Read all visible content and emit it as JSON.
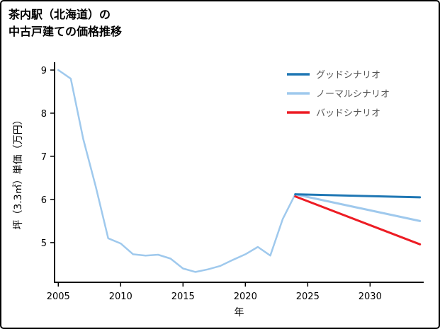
{
  "title": {
    "line1": "茶内駅（北海道）の",
    "line2": "中古戸建ての価格推移"
  },
  "chart_data": {
    "type": "line",
    "xlabel": "年",
    "ylabel": "坪（3.3㎡）単価（万円）",
    "x_ticks": [
      2005,
      2010,
      2015,
      2020,
      2025,
      2030
    ],
    "y_ticks": [
      5,
      6,
      7,
      8,
      9
    ],
    "xlim": [
      2004.7,
      2034.3
    ],
    "ylim": [
      4.08,
      9.18
    ],
    "grid": false,
    "legend_position": "top-right",
    "series": [
      {
        "id": "history",
        "color": "#9fc9ed",
        "width": 2.5,
        "x": [
          2005,
          2006,
          2007,
          2008,
          2009,
          2010,
          2011,
          2012,
          2013,
          2014,
          2015,
          2016,
          2017,
          2018,
          2019,
          2020,
          2021,
          2022,
          2023,
          2024
        ],
        "values": [
          9.0,
          8.8,
          7.4,
          6.3,
          5.1,
          4.98,
          4.73,
          4.7,
          4.72,
          4.63,
          4.4,
          4.32,
          4.38,
          4.46,
          4.6,
          4.73,
          4.9,
          4.7,
          5.55,
          6.12
        ]
      },
      {
        "id": "normal",
        "label": "ノーマルシナリオ",
        "color": "#9fc9ed",
        "width": 3,
        "x": [
          2024,
          2034
        ],
        "values": [
          6.12,
          5.5
        ]
      },
      {
        "id": "bad",
        "label": "バッドシナリオ",
        "color": "#ed1c24",
        "width": 3,
        "x": [
          2024,
          2034
        ],
        "values": [
          6.07,
          4.96
        ]
      },
      {
        "id": "good",
        "label": "グッドシナリオ",
        "color": "#1f77b4",
        "width": 3,
        "x": [
          2024,
          2034
        ],
        "values": [
          6.12,
          6.05
        ]
      }
    ],
    "legend": [
      {
        "label": "グッドシナリオ",
        "color": "#1f77b4"
      },
      {
        "label": "ノーマルシナリオ",
        "color": "#9fc9ed"
      },
      {
        "label": "バッドシナリオ",
        "color": "#ed1c24"
      }
    ]
  }
}
